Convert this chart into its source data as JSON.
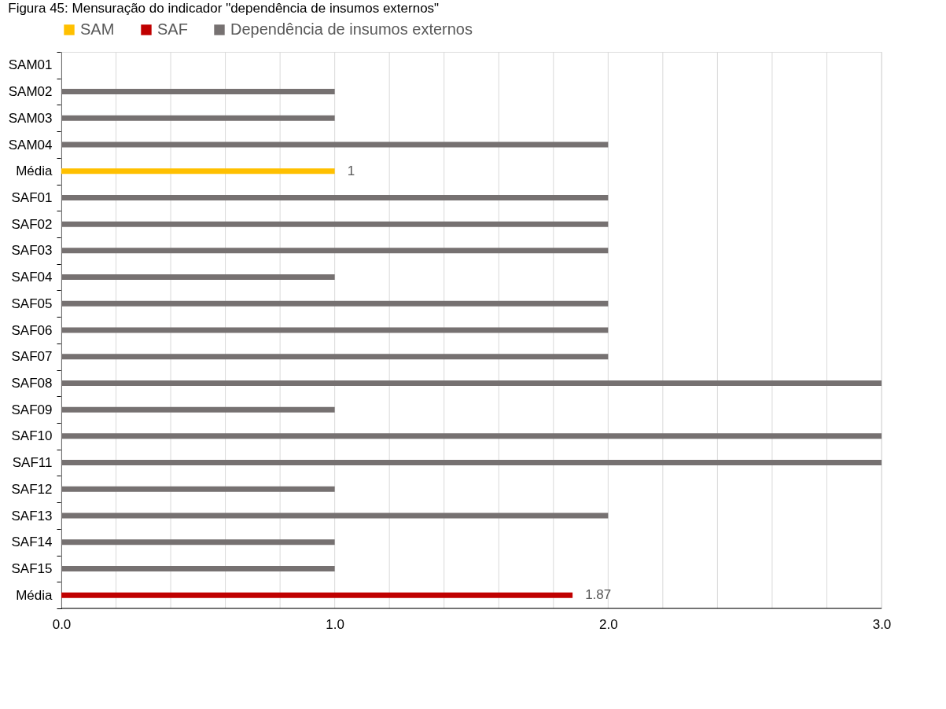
{
  "chart_data": {
    "type": "bar",
    "orientation": "horizontal",
    "title": "Figura 45: Mensuração do indicador \"dependência de insumos externos\"",
    "categories": [
      "SAM01",
      "SAM02",
      "SAM03",
      "SAM04",
      "Média",
      "SAF01",
      "SAF02",
      "SAF03",
      "SAF04",
      "SAF05",
      "SAF06",
      "SAF07",
      "SAF08",
      "SAF09",
      "SAF10",
      "SAF11",
      "SAF12",
      "SAF13",
      "SAF14",
      "SAF15",
      "Média"
    ],
    "series": [
      {
        "name": "SAM",
        "color": "#ffc000",
        "values": [
          null,
          null,
          null,
          null,
          1,
          null,
          null,
          null,
          null,
          null,
          null,
          null,
          null,
          null,
          null,
          null,
          null,
          null,
          null,
          null,
          null
        ],
        "value_labels": [
          null,
          null,
          null,
          null,
          "1",
          null,
          null,
          null,
          null,
          null,
          null,
          null,
          null,
          null,
          null,
          null,
          null,
          null,
          null,
          null,
          null
        ]
      },
      {
        "name": "SAF",
        "color": "#c00000",
        "values": [
          null,
          null,
          null,
          null,
          null,
          null,
          null,
          null,
          null,
          null,
          null,
          null,
          null,
          null,
          null,
          null,
          null,
          null,
          null,
          null,
          1.87
        ],
        "value_labels": [
          null,
          null,
          null,
          null,
          null,
          null,
          null,
          null,
          null,
          null,
          null,
          null,
          null,
          null,
          null,
          null,
          null,
          null,
          null,
          null,
          "1.87"
        ]
      },
      {
        "name": "Dependência de insumos externos",
        "color": "#767171",
        "values": [
          0,
          1,
          1,
          2,
          null,
          2,
          2,
          2,
          1,
          2,
          2,
          2,
          3,
          1,
          3,
          3,
          1,
          2,
          1,
          1,
          null
        ]
      }
    ],
    "xlim": [
      0,
      3
    ],
    "xticks": [
      {
        "value": 0,
        "label": "0.0"
      },
      {
        "value": 0.2,
        "label": null
      },
      {
        "value": 0.4,
        "label": null
      },
      {
        "value": 0.6,
        "label": null
      },
      {
        "value": 0.8,
        "label": null
      },
      {
        "value": 1,
        "label": "1.0"
      },
      {
        "value": 1.2,
        "label": null
      },
      {
        "value": 1.4,
        "label": null
      },
      {
        "value": 1.6,
        "label": null
      },
      {
        "value": 1.8,
        "label": null
      },
      {
        "value": 2,
        "label": "2.0"
      },
      {
        "value": 2.2,
        "label": null
      },
      {
        "value": 2.4,
        "label": null
      },
      {
        "value": 2.6,
        "label": null
      },
      {
        "value": 2.8,
        "label": null
      },
      {
        "value": 3,
        "label": "3.0"
      }
    ],
    "grid": "x",
    "legend": "top"
  }
}
